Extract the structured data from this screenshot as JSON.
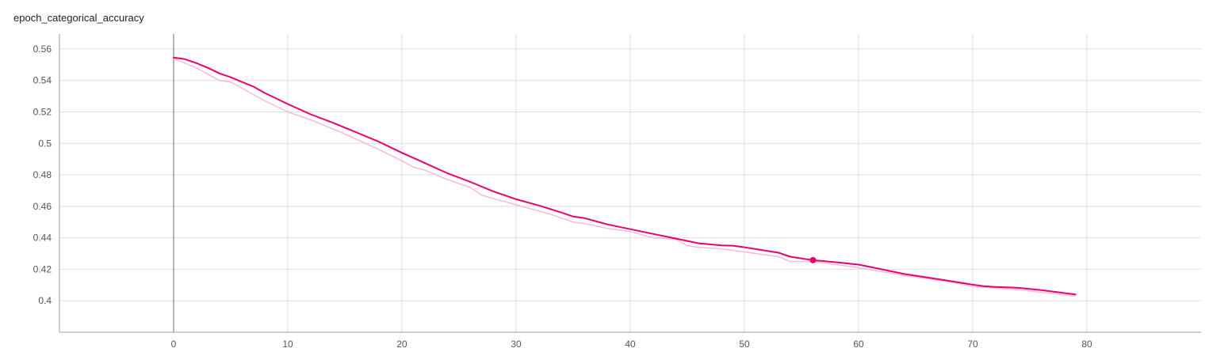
{
  "chart_data": {
    "type": "line",
    "title": "epoch_categorical_accuracy",
    "xlabel": "",
    "ylabel": "",
    "xlim": [
      -10,
      90
    ],
    "ylim": [
      0.38,
      0.5695
    ],
    "x_ticks": [
      0,
      10,
      20,
      30,
      40,
      50,
      60,
      70,
      80
    ],
    "y_ticks": [
      0.4,
      0.42,
      0.44,
      0.46,
      0.48,
      0.5,
      0.52,
      0.54,
      0.56
    ],
    "x_tick_labels": [
      "0",
      "10",
      "20",
      "30",
      "40",
      "50",
      "60",
      "70",
      "80"
    ],
    "y_tick_labels": [
      "0.4",
      "0.42",
      "0.44",
      "0.46",
      "0.48",
      "0.5",
      "0.52",
      "0.54",
      "0.56"
    ],
    "grid": true,
    "series": [
      {
        "style": "raw",
        "color": "#f8bbd0",
        "x": [
          0,
          2,
          4,
          5,
          6,
          8,
          10,
          12,
          15,
          18,
          20,
          21,
          22,
          24,
          26,
          27,
          30,
          33,
          35,
          36,
          38,
          40,
          42,
          44,
          45,
          46,
          48,
          50,
          53,
          54,
          56,
          60,
          64,
          68,
          70,
          72,
          74,
          79
        ],
        "y": [
          0.554,
          0.548,
          0.54,
          0.539,
          0.535,
          0.527,
          0.52,
          0.515,
          0.506,
          0.496,
          0.489,
          0.485,
          0.483,
          0.477,
          0.472,
          0.467,
          0.461,
          0.455,
          0.45,
          0.449,
          0.446,
          0.444,
          0.44,
          0.439,
          0.435,
          0.434,
          0.433,
          0.431,
          0.428,
          0.425,
          0.425,
          0.421,
          0.416,
          0.412,
          0.409,
          0.408,
          0.407,
          0.403
        ]
      },
      {
        "style": "smoothed",
        "color": "#e9006f",
        "x": [
          0,
          1,
          2,
          3,
          4,
          5,
          6,
          7,
          8,
          10,
          12,
          14,
          16,
          18,
          20,
          22,
          24,
          26,
          28,
          30,
          32,
          34,
          35,
          36,
          38,
          40,
          42,
          44,
          46,
          48,
          49,
          50,
          53,
          54,
          56,
          58,
          60,
          62,
          64,
          66,
          68,
          70,
          71,
          72,
          74,
          76,
          79
        ],
        "y": [
          0.5545,
          0.5535,
          0.551,
          0.548,
          0.5445,
          0.542,
          0.539,
          0.536,
          0.532,
          0.525,
          0.5185,
          0.513,
          0.507,
          0.501,
          0.494,
          0.4875,
          0.481,
          0.4755,
          0.4695,
          0.4645,
          0.4605,
          0.456,
          0.4535,
          0.4525,
          0.4485,
          0.4455,
          0.4425,
          0.4395,
          0.4365,
          0.4352,
          0.435,
          0.434,
          0.4305,
          0.428,
          0.4258,
          0.4245,
          0.423,
          0.42,
          0.417,
          0.4148,
          0.4125,
          0.4102,
          0.4092,
          0.4088,
          0.4082,
          0.4068,
          0.404
        ]
      }
    ],
    "highlight_point": {
      "x": 56,
      "y": 0.4258,
      "color": "#e9006f"
    }
  }
}
